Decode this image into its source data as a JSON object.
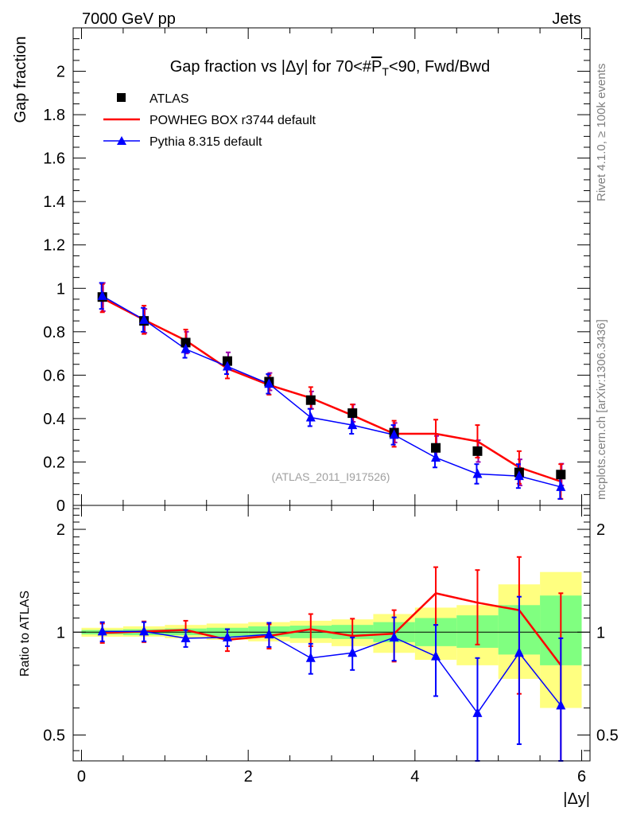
{
  "header": {
    "left": "7000 GeV pp",
    "right": "Jets",
    "side_top": "Rivet 4.1.0, ≥ 100k events",
    "side_bottom": "mcplots.cern.ch [arXiv:1306.3436]"
  },
  "chart_data": [
    {
      "type": "scatter",
      "panel": "main",
      "title": "Gap fraction vs |Δy| for 70<#P̅T<90, Fwd/Bwd",
      "title_parts": {
        "prefix": "Gap fraction vs |Δy| for 70<#",
        "p": "P",
        "sub": "T",
        "suffix": "<90, Fwd/Bwd"
      },
      "ylabel": "Gap fraction",
      "xlim": [
        -0.1,
        6.1
      ],
      "ylim": [
        0,
        2.2
      ],
      "x_ticks": [
        0,
        2,
        4,
        6
      ],
      "y_ticks": [
        0,
        0.2,
        0.4,
        0.6,
        0.8,
        1,
        1.2,
        1.4,
        1.6,
        1.8,
        2
      ],
      "y_tick_labels": [
        "0",
        "0.2",
        "0.4",
        "0.6",
        "0.8",
        "1",
        "1.2",
        "1.4",
        "1.6",
        "1.8",
        "2"
      ],
      "watermark": "(ATLAS_2011_I917526)",
      "x": [
        0.25,
        0.75,
        1.25,
        1.75,
        2.25,
        2.75,
        3.25,
        3.75,
        4.25,
        4.75,
        5.25,
        5.75
      ],
      "series": [
        {
          "name": "ATLAS",
          "style": "marker-square",
          "color": "#000000",
          "values": [
            0.96,
            0.85,
            0.75,
            0.665,
            0.57,
            0.485,
            0.425,
            0.335,
            0.265,
            0.25,
            0.152,
            0.142
          ],
          "err": [
            0.065,
            0.055,
            0.05,
            0.04,
            0.04,
            0.04,
            0.04,
            0.045,
            0.055,
            0.05,
            0.06,
            0.05
          ]
        },
        {
          "name": "POWHEG BOX r3744 default",
          "style": "line",
          "color": "#ff0000",
          "values": [
            0.955,
            0.855,
            0.76,
            0.63,
            0.555,
            0.495,
            0.415,
            0.33,
            0.33,
            0.295,
            0.175,
            0.11
          ],
          "err": [
            0.065,
            0.065,
            0.05,
            0.045,
            0.045,
            0.05,
            0.05,
            0.06,
            0.065,
            0.075,
            0.075,
            0.08
          ]
        },
        {
          "name": "Pythia 8.315 default",
          "style": "line-triangle",
          "color": "#0000ff",
          "values": [
            0.965,
            0.855,
            0.72,
            0.64,
            0.56,
            0.405,
            0.37,
            0.325,
            0.22,
            0.145,
            0.135,
            0.085
          ],
          "err": [
            0.06,
            0.055,
            0.04,
            0.035,
            0.045,
            0.04,
            0.04,
            0.045,
            0.045,
            0.045,
            0.055,
            0.055
          ]
        }
      ]
    },
    {
      "type": "scatter",
      "panel": "ratio",
      "ylabel": "Ratio to ATLAS",
      "xlabel": "|Δy|",
      "log_y": true,
      "xlim": [
        -0.1,
        6.1
      ],
      "ylim": [
        0.42,
        2.35
      ],
      "x_ticks": [
        0,
        2,
        4,
        6
      ],
      "x_tick_labels": [
        "0",
        "2",
        "4",
        "6"
      ],
      "y_ticks": [
        0.5,
        1,
        2
      ],
      "y_tick_labels": [
        "0.5",
        "1",
        "2"
      ],
      "x": [
        0.25,
        0.75,
        1.25,
        1.75,
        2.25,
        2.75,
        3.25,
        3.75,
        4.25,
        4.75,
        5.25,
        5.75
      ],
      "band_yellow": [
        [
          0.97,
          1.03
        ],
        [
          0.97,
          1.04
        ],
        [
          0.96,
          1.05
        ],
        [
          0.95,
          1.06
        ],
        [
          0.94,
          1.07
        ],
        [
          0.93,
          1.08
        ],
        [
          0.91,
          1.09
        ],
        [
          0.87,
          1.13
        ],
        [
          0.83,
          1.18
        ],
        [
          0.8,
          1.2
        ],
        [
          0.73,
          1.38
        ],
        [
          0.6,
          1.5
        ]
      ],
      "band_green": [
        [
          0.985,
          1.015
        ],
        [
          0.98,
          1.02
        ],
        [
          0.98,
          1.025
        ],
        [
          0.97,
          1.03
        ],
        [
          0.97,
          1.04
        ],
        [
          0.96,
          1.045
        ],
        [
          0.955,
          1.05
        ],
        [
          0.935,
          1.07
        ],
        [
          0.91,
          1.1
        ],
        [
          0.9,
          1.12
        ],
        [
          0.86,
          1.2
        ],
        [
          0.8,
          1.28
        ]
      ],
      "series": [
        {
          "name": "POWHEG BOX r3744 default",
          "color": "#ff0000",
          "values": [
            0.995,
            1.005,
            1.015,
            0.95,
            0.975,
            1.02,
            0.975,
            0.99,
            1.3,
            1.22,
            1.16,
            0.8
          ],
          "err": [
            0.065,
            0.07,
            0.065,
            0.07,
            0.08,
            0.11,
            0.12,
            0.17,
            0.25,
            0.3,
            0.5,
            0.5
          ]
        },
        {
          "name": "Pythia 8.315 default",
          "color": "#0000ff",
          "values": [
            1.005,
            1.005,
            0.96,
            0.965,
            0.985,
            0.84,
            0.87,
            0.965,
            0.85,
            0.58,
            0.87,
            0.61
          ],
          "err": [
            0.065,
            0.065,
            0.055,
            0.055,
            0.08,
            0.085,
            0.095,
            0.14,
            0.2,
            0.26,
            0.4,
            0.35
          ]
        }
      ]
    }
  ]
}
